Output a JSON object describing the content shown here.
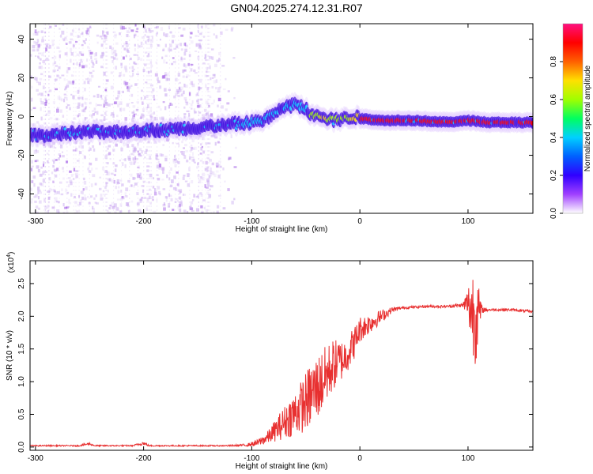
{
  "title": "GN04.2025.274.12.31.R07",
  "chart_data": [
    {
      "type": "heatmap",
      "xlabel": "Height of straight line (km)",
      "ylabel": "Frequency (Hz)",
      "xlim": [
        -305,
        160
      ],
      "ylim": [
        -50,
        48
      ],
      "x_ticks": [
        -300,
        -200,
        -100,
        0,
        100
      ],
      "x_tick_labels": [
        "-300",
        "-200",
        "-100",
        "0",
        "100"
      ],
      "y_ticks": [
        -40,
        -20,
        0,
        20,
        40
      ],
      "y_tick_labels": [
        "-40",
        "-20",
        "0",
        "20",
        "40"
      ],
      "colorbar": {
        "label": "Normalized spectral amplitude",
        "range": [
          0,
          1
        ],
        "ticks": [
          0.0,
          0.2,
          0.4,
          0.6,
          0.8
        ],
        "tick_labels": [
          "0.0",
          "0.2",
          "0.4",
          "0.6",
          "0.8"
        ],
        "colors": [
          "#ffffff",
          "#a040ff",
          "#3000ff",
          "#0060ff",
          "#00d0ff",
          "#00ff60",
          "#a0ff00",
          "#ffe000",
          "#ff6000",
          "#ff0000",
          "#ff1080"
        ]
      },
      "ridge": {
        "x": [
          -305,
          -280,
          -250,
          -220,
          -200,
          -180,
          -160,
          -140,
          -120,
          -100,
          -90,
          -80,
          -72,
          -60,
          -52,
          -45,
          -35,
          -25,
          -15,
          -5,
          0,
          20,
          50,
          80,
          100,
          120,
          160
        ],
        "y": [
          -10,
          -9,
          -8,
          -8,
          -7,
          -7,
          -6,
          -5,
          -4,
          -3,
          -2,
          1,
          5,
          6,
          5,
          1,
          0,
          -2,
          -1,
          0,
          -1,
          -2,
          -2,
          -3,
          -2,
          -3,
          -3
        ],
        "intensity": [
          0.3,
          0.35,
          0.35,
          0.35,
          0.35,
          0.3,
          0.3,
          0.35,
          0.4,
          0.5,
          0.55,
          0.6,
          0.75,
          0.7,
          0.7,
          0.8,
          0.9,
          0.85,
          0.85,
          0.9,
          0.95,
          1.0,
          0.95,
          1.0,
          0.95,
          1.0,
          1.0
        ]
      },
      "colors": {
        "ridge_low": "#4010e0",
        "ridge_mid": "#00d0ff",
        "ridge_high": "#ff0000",
        "noise": "#c8a8f0"
      }
    },
    {
      "type": "line",
      "xlabel": "Height of straight line (km)",
      "ylabel": "SNR (10 * v/v)",
      "scale_label": "(x10",
      "scale_exponent": "4",
      "scale_suffix": ")",
      "xlim": [
        -305,
        160
      ],
      "ylim": [
        -0.05,
        2.85
      ],
      "x_ticks": [
        -300,
        -200,
        -100,
        0,
        100
      ],
      "x_tick_labels": [
        "-300",
        "-200",
        "-100",
        "0",
        "100"
      ],
      "y_ticks": [
        0.0,
        0.5,
        1.0,
        1.5,
        2.0,
        2.5
      ],
      "y_tick_labels": [
        "0.0",
        "0.5",
        "1.0",
        "1.5",
        "2.0",
        "2.5"
      ],
      "color": "#e83030",
      "envelope": {
        "x": [
          -305,
          -260,
          -250,
          -245,
          -210,
          -200,
          -195,
          -120,
          -105,
          -95,
          -85,
          -75,
          -65,
          -55,
          -45,
          -35,
          -25,
          -15,
          -5,
          0,
          10,
          20,
          30,
          40,
          60,
          80,
          95,
          100,
          103,
          107,
          110,
          113,
          120,
          140,
          160
        ],
        "center": [
          0.02,
          0.02,
          0.05,
          0.02,
          0.02,
          0.06,
          0.02,
          0.02,
          0.03,
          0.06,
          0.15,
          0.3,
          0.45,
          0.6,
          0.8,
          1.0,
          1.25,
          1.35,
          1.6,
          1.8,
          1.9,
          2.0,
          2.1,
          2.13,
          2.15,
          2.15,
          2.17,
          2.2,
          2.1,
          2.05,
          2.05,
          2.1,
          2.1,
          2.1,
          2.07
        ],
        "amplitude": [
          0.01,
          0.01,
          0.02,
          0.01,
          0.01,
          0.03,
          0.01,
          0.01,
          0.02,
          0.05,
          0.1,
          0.2,
          0.3,
          0.4,
          0.5,
          0.5,
          0.4,
          0.3,
          0.25,
          0.2,
          0.15,
          0.1,
          0.04,
          0.02,
          0.02,
          0.02,
          0.03,
          0.25,
          0.65,
          0.8,
          0.4,
          0.05,
          0.02,
          0.02,
          0.02
        ]
      }
    }
  ]
}
